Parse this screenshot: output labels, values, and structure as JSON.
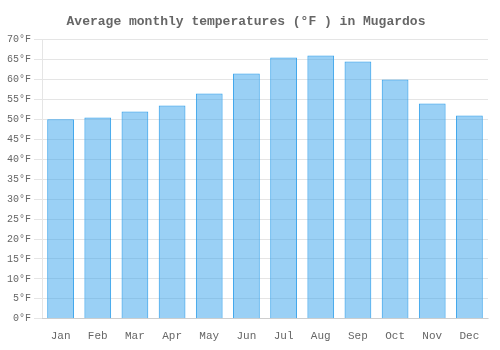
{
  "chart_data": {
    "type": "bar",
    "title": "Average monthly temperatures (°F ) in Mugardos",
    "categories": [
      "Jan",
      "Feb",
      "Mar",
      "Apr",
      "May",
      "Jun",
      "Jul",
      "Aug",
      "Sep",
      "Oct",
      "Nov",
      "Dec"
    ],
    "values": [
      50,
      50.5,
      52,
      53.5,
      56.5,
      61.5,
      65.5,
      66,
      64.5,
      60,
      54,
      51
    ],
    "ylim": [
      0,
      70
    ],
    "yticks": [
      {
        "value": 0,
        "label": "0°F"
      },
      {
        "value": 5,
        "label": "5°F"
      },
      {
        "value": 10,
        "label": "10°F"
      },
      {
        "value": 15,
        "label": "15°F"
      },
      {
        "value": 20,
        "label": "20°F"
      },
      {
        "value": 25,
        "label": "25°F"
      },
      {
        "value": 30,
        "label": "30°F"
      },
      {
        "value": 35,
        "label": "35°F"
      },
      {
        "value": 40,
        "label": "40°F"
      },
      {
        "value": 45,
        "label": "45°F"
      },
      {
        "value": 50,
        "label": "50°F"
      },
      {
        "value": 55,
        "label": "55°F"
      },
      {
        "value": 60,
        "label": "60°F"
      },
      {
        "value": 65,
        "label": "65°F"
      },
      {
        "value": 70,
        "label": "70°F"
      }
    ],
    "grid": true
  }
}
